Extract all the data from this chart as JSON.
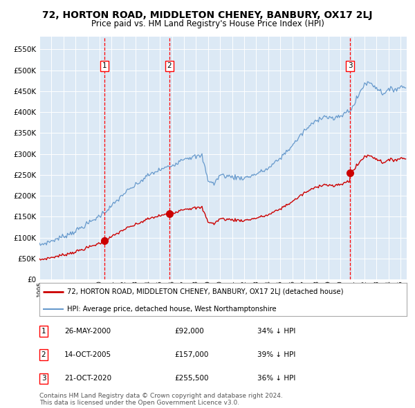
{
  "title": "72, HORTON ROAD, MIDDLETON CHENEY, BANBURY, OX17 2LJ",
  "subtitle": "Price paid vs. HM Land Registry's House Price Index (HPI)",
  "title_fontsize": 10,
  "subtitle_fontsize": 8.5,
  "background_color": "#ffffff",
  "plot_bg_color": "#dce9f5",
  "grid_color": "#ffffff",
  "ylim": [
    0,
    580000
  ],
  "yticks": [
    0,
    50000,
    100000,
    150000,
    200000,
    250000,
    300000,
    350000,
    400000,
    450000,
    500000,
    550000
  ],
  "xlim_start": 1995.0,
  "xlim_end": 2025.5,
  "sale_dates": [
    2000.4,
    2005.79,
    2020.81
  ],
  "sale_prices": [
    92000,
    157000,
    255500
  ],
  "sale_labels": [
    "1",
    "2",
    "3"
  ],
  "vline_color": "#ff0000",
  "sale_dot_color": "#cc0000",
  "hpi_line_color": "#6699cc",
  "price_line_color": "#cc0000",
  "legend_label_price": "72, HORTON ROAD, MIDDLETON CHENEY, BANBURY, OX17 2LJ (detached house)",
  "legend_label_hpi": "HPI: Average price, detached house, West Northamptonshire",
  "table_rows": [
    [
      "1",
      "26-MAY-2000",
      "£92,000",
      "34% ↓ HPI"
    ],
    [
      "2",
      "14-OCT-2005",
      "£157,000",
      "39% ↓ HPI"
    ],
    [
      "3",
      "21-OCT-2020",
      "£255,500",
      "36% ↓ HPI"
    ]
  ],
  "footer_text": "Contains HM Land Registry data © Crown copyright and database right 2024.\nThis data is licensed under the Open Government Licence v3.0.",
  "footer_fontsize": 6.5,
  "table_fontsize": 8,
  "hpi_anchors_t": [
    1995,
    1996,
    1997,
    1998,
    1999,
    2000,
    2001,
    2002,
    2003,
    2004,
    2005,
    2006,
    2007,
    2008.5,
    2009,
    2009.5,
    2010,
    2011,
    2012,
    2013,
    2014,
    2015,
    2016,
    2017,
    2018,
    2018.5,
    2019,
    2019.5,
    2020,
    2020.5,
    2021,
    2021.5,
    2022,
    2022.5,
    2023,
    2023.5,
    2024,
    2024.5,
    2025
  ],
  "hpi_anchors_v": [
    82000,
    92000,
    103000,
    116000,
    133000,
    152000,
    175000,
    205000,
    225000,
    248000,
    262000,
    272000,
    290000,
    295000,
    238000,
    228000,
    250000,
    245000,
    242000,
    252000,
    265000,
    290000,
    320000,
    355000,
    380000,
    390000,
    388000,
    383000,
    390000,
    400000,
    410000,
    440000,
    468000,
    470000,
    458000,
    445000,
    452000,
    455000,
    460000
  ]
}
